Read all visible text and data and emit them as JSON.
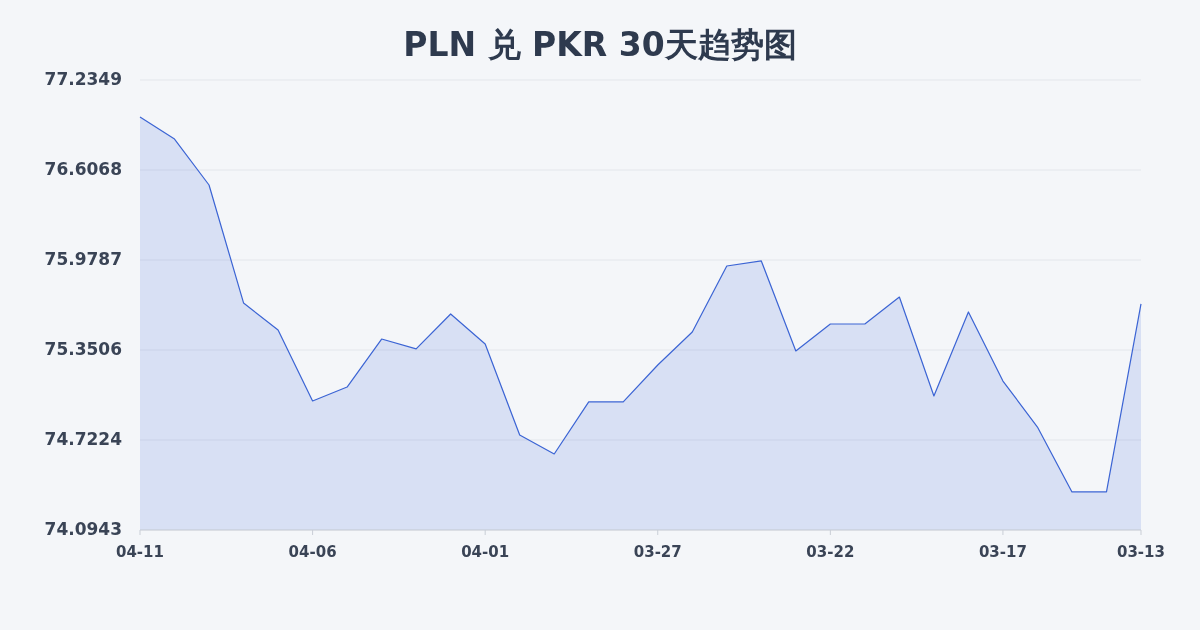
{
  "chart_data": {
    "type": "area",
    "title": "PLN 兑 PKR 30天趋势图",
    "categories": [
      "04-11",
      null,
      null,
      null,
      null,
      "04-06",
      null,
      null,
      null,
      null,
      "04-01",
      null,
      null,
      null,
      null,
      "03-27",
      null,
      null,
      null,
      null,
      "03-22",
      null,
      null,
      null,
      null,
      "03-17",
      null,
      null,
      null,
      "03-13"
    ],
    "values": [
      76.977,
      76.823,
      76.502,
      75.679,
      75.49,
      74.995,
      75.092,
      75.427,
      75.358,
      75.602,
      75.392,
      74.757,
      74.625,
      74.988,
      74.988,
      75.246,
      75.476,
      75.937,
      75.972,
      75.344,
      75.532,
      75.532,
      75.72,
      75.03,
      75.616,
      75.134,
      74.813,
      74.36,
      74.36,
      75.672
    ],
    "color": "#3b64d4",
    "ylim": [
      74.0943,
      77.2349
    ],
    "yticks": [
      74.0943,
      74.7224,
      75.3506,
      75.9787,
      76.6068,
      77.2349
    ],
    "grid": "y"
  }
}
